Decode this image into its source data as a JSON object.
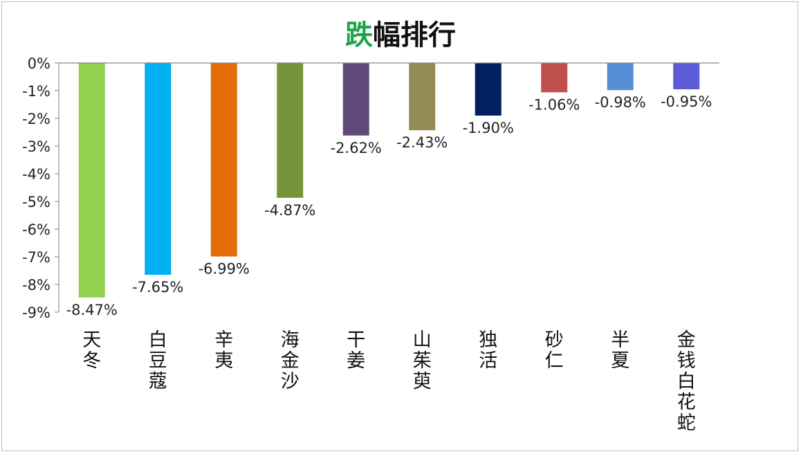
{
  "chart_data": {
    "type": "bar",
    "title_accent": "跌",
    "title_rest": "幅排行",
    "categories": [
      "天冬",
      "白豆蔻",
      "辛夷",
      "海金沙",
      "干姜",
      "山茱萸",
      "独活",
      "砂仁",
      "半夏",
      "金钱白花蛇"
    ],
    "values": [
      -8.47,
      -7.65,
      -6.99,
      -4.87,
      -2.62,
      -2.43,
      -1.9,
      -1.06,
      -0.98,
      -0.95
    ],
    "data_labels": [
      "-8.47%",
      "-7.65%",
      "-6.99%",
      "-4.87%",
      "-2.62%",
      "-2.43%",
      "-1.90%",
      "-1.06%",
      "-0.98%",
      "-0.95%"
    ],
    "colors": [
      "#92d050",
      "#00b0f0",
      "#e36c09",
      "#77933c",
      "#604a7b",
      "#948a54",
      "#002060",
      "#c0504d",
      "#558ed5",
      "#5b5bd6"
    ],
    "y_ticks": [
      {
        "value": 0,
        "label": "0%"
      },
      {
        "value": -1,
        "label": "-1%"
      },
      {
        "value": -2,
        "label": "-2%"
      },
      {
        "value": -3,
        "label": "-3%"
      },
      {
        "value": -4,
        "label": "-4%"
      },
      {
        "value": -5,
        "label": "-5%"
      },
      {
        "value": -6,
        "label": "-6%"
      },
      {
        "value": -7,
        "label": "-7%"
      },
      {
        "value": -8,
        "label": "-8%"
      },
      {
        "value": -9,
        "label": "-9%"
      }
    ],
    "ylim": [
      -9,
      0
    ],
    "grid": false,
    "legend": "none"
  }
}
